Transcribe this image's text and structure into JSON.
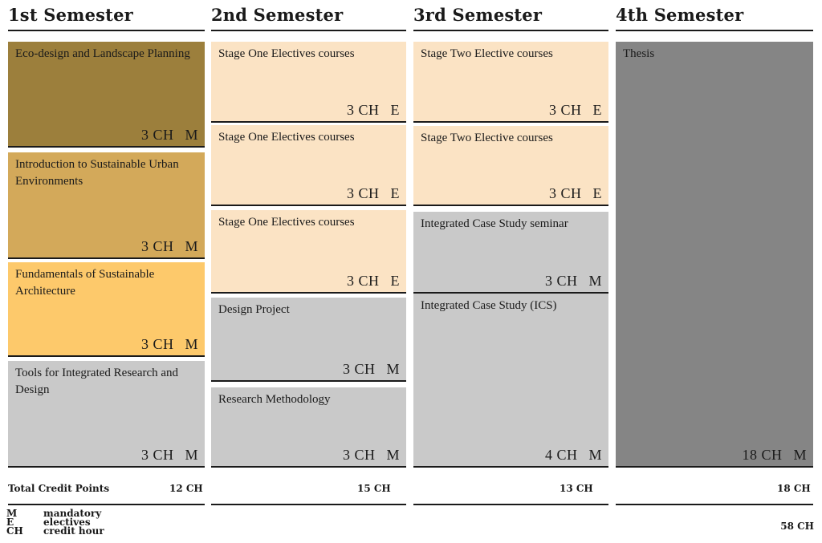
{
  "semesters": [
    {
      "title": "1st Semester",
      "total": "12 CH",
      "courses": [
        {
          "name": "Eco-design and Landscape Planning",
          "credits": "3 CH",
          "type": "M",
          "color": "#9c7f3c"
        },
        {
          "name": "Introduction to Sustainable Urban Environments",
          "credits": "3 CH",
          "type": "M",
          "color": "#d3a95a"
        },
        {
          "name": "Fundamentals of Sustainable Architecture",
          "credits": "3 CH",
          "type": "M",
          "color": "#fdc96b"
        },
        {
          "name": "Tools for Integrated Research and Design",
          "credits": "3 CH",
          "type": "M",
          "color": "#c9c9c9"
        }
      ]
    },
    {
      "title": "2nd Semester",
      "total": "15 CH",
      "courses": [
        {
          "name": "Stage One Electives courses",
          "credits": "3 CH",
          "type": "E",
          "color": "#fbe3c4"
        },
        {
          "name": "Stage One Electives courses",
          "credits": "3 CH",
          "type": "E",
          "color": "#fbe3c4"
        },
        {
          "name": "Stage One Electives courses",
          "credits": "3 CH",
          "type": "E",
          "color": "#fbe3c4"
        },
        {
          "name": "Design Project",
          "credits": "3 CH",
          "type": "M",
          "color": "#c9c9c9"
        },
        {
          "name": "Research Methodology",
          "credits": "3 CH",
          "type": "M",
          "color": "#c9c9c9"
        }
      ]
    },
    {
      "title": "3rd Semester",
      "total": "13 CH",
      "courses": [
        {
          "name": "Stage Two Elective courses",
          "credits": "3 CH",
          "type": "E",
          "color": "#fbe3c4"
        },
        {
          "name": "Stage Two Elective courses",
          "credits": "3 CH",
          "type": "E",
          "color": "#fbe3c4"
        },
        {
          "name": "Integrated Case Study seminar",
          "credits": "3 CH",
          "type": "M",
          "color": "#c9c9c9"
        },
        {
          "name": "Integrated Case Study (ICS)",
          "credits": "4 CH",
          "type": "M",
          "color": "#c9c9c9"
        }
      ]
    },
    {
      "title": "4th Semester",
      "total": "18 CH",
      "courses": [
        {
          "name": "Thesis",
          "credits": "18 CH",
          "type": "M",
          "color": "#858585"
        }
      ]
    }
  ],
  "total_label": "Total Credit Points",
  "grand_total": "58 CH",
  "legend": [
    {
      "abbr": "M",
      "text": "mandatory"
    },
    {
      "abbr": "E",
      "text": "electives"
    },
    {
      "abbr": "CH",
      "text": "credit hour"
    }
  ]
}
